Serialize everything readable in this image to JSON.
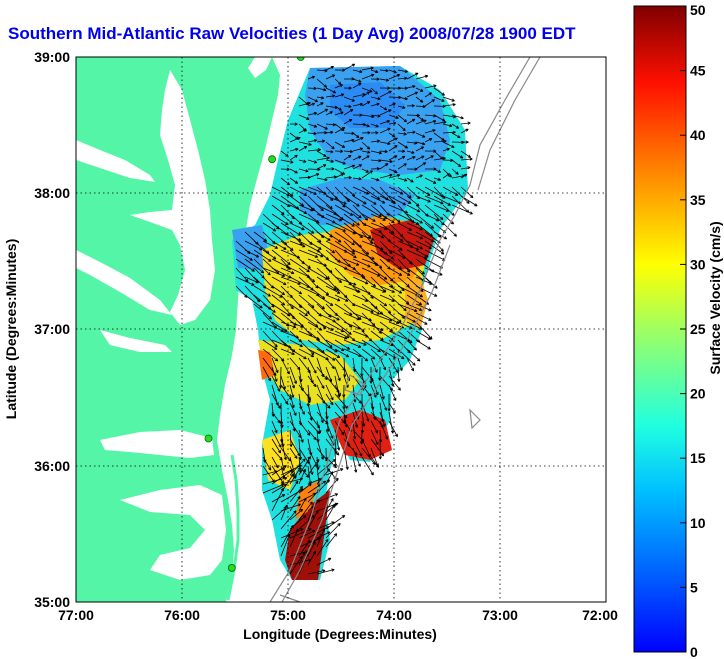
{
  "title": "Southern Mid-Atlantic Raw Velocities (1 Day Avg) 2008/07/28 1900 EDT",
  "xlabel": "Longitude (Degrees:Minutes)",
  "ylabel": "Latitude (Degrees:Minutes)",
  "x_ticks": [
    "77:00",
    "76:00",
    "75:00",
    "74:00",
    "73:00",
    "72:00"
  ],
  "y_ticks": [
    "39:00",
    "38:00",
    "37:00",
    "36:00",
    "35:00"
  ],
  "colorbar": {
    "label": "Surface Velocity (cm/s)",
    "ticks": [
      "50",
      "45",
      "40",
      "35",
      "30",
      "25",
      "20",
      "15",
      "10",
      "5",
      "0"
    ],
    "range": [
      0,
      50
    ]
  },
  "colors": {
    "land": "#55f5a8",
    "water": "#ffffff",
    "title": "#0000ee"
  },
  "map": {
    "lon_range": [
      -77,
      -72
    ],
    "lat_range": [
      35,
      39
    ],
    "grid": "dotted",
    "stations": [
      {
        "lon": -74.88,
        "lat": 39.0
      },
      {
        "lon": -75.15,
        "lat": 38.25
      },
      {
        "lon": -75.75,
        "lat": 36.2
      },
      {
        "lon": -75.53,
        "lat": 35.25
      }
    ]
  }
}
